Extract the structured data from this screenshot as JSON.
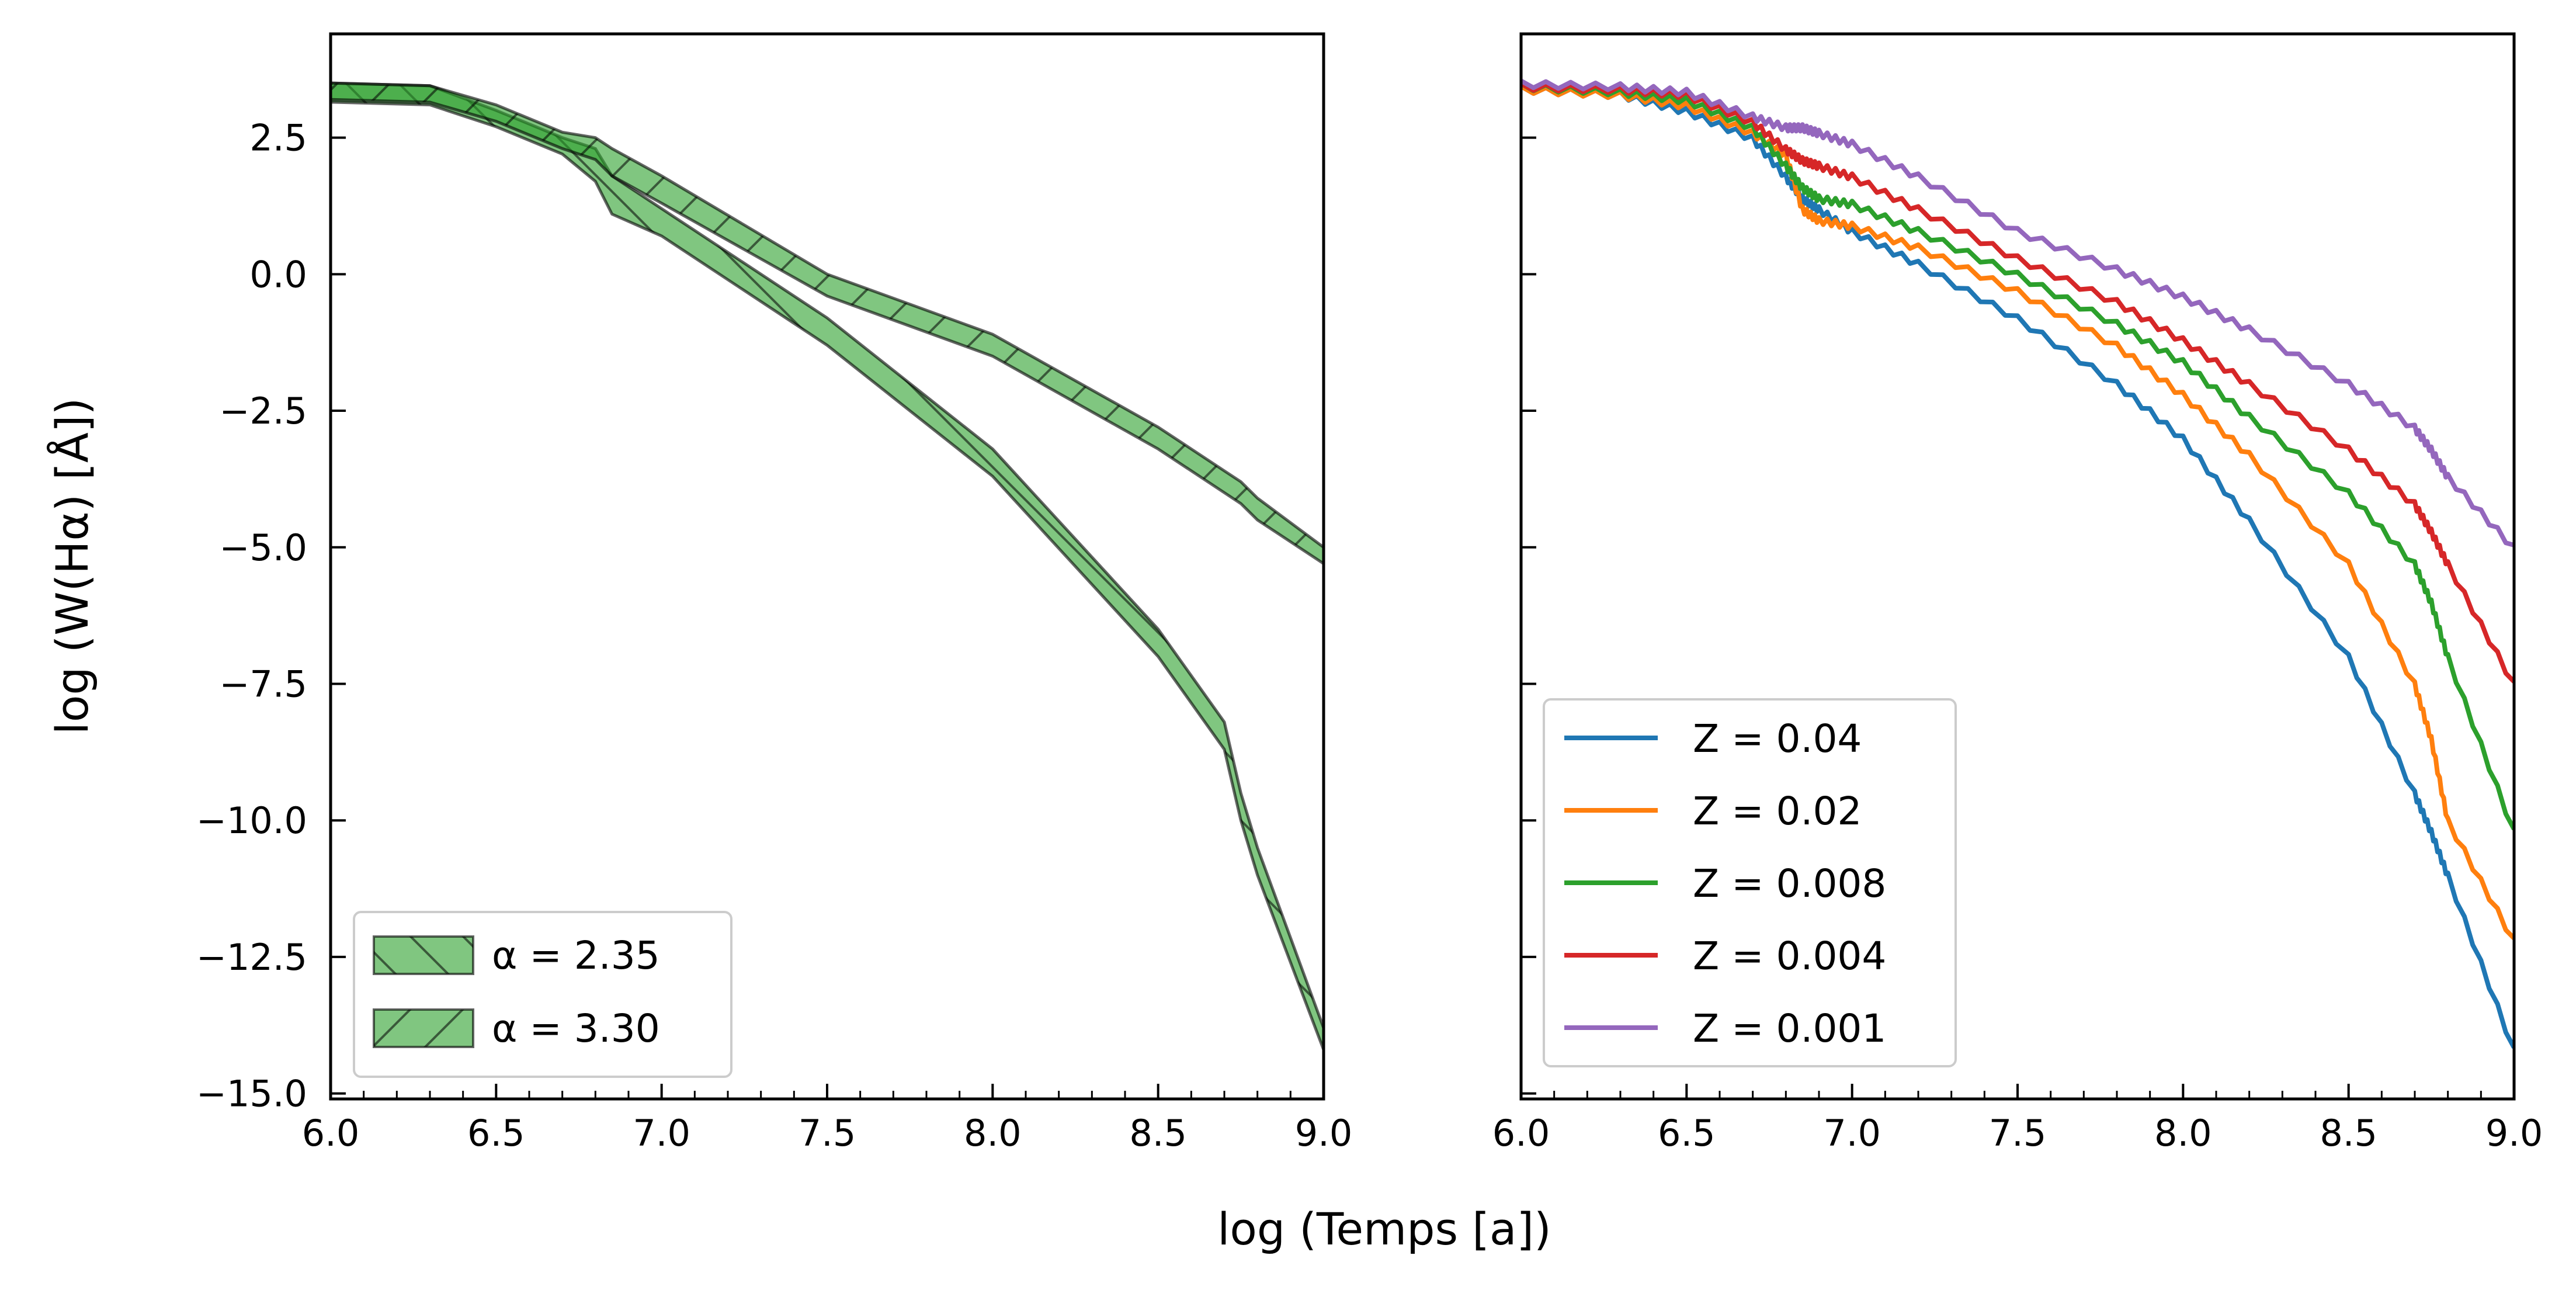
{
  "figure": {
    "xlabel": "log (Temps [a])",
    "ylabel": "log (W(Hα) [Å])"
  },
  "chart_data": [
    {
      "type": "area",
      "panel": "left",
      "xlim": [
        6.0,
        9.0
      ],
      "ylim": [
        -15.1,
        4.4
      ],
      "xticks": [
        "6.0",
        "6.5",
        "7.0",
        "7.5",
        "8.0",
        "8.5",
        "9.0"
      ],
      "yticks": [
        "2.5",
        "0.0",
        "−2.5",
        "−5.0",
        "−7.5",
        "−10.0",
        "−12.5",
        "−15.0"
      ],
      "legend_position": "lower left",
      "fill_color": "#2ca02c",
      "series": [
        {
          "name": "α = 2.35",
          "hatch": "\\",
          "x": [
            6.0,
            6.3,
            6.5,
            6.7,
            6.8,
            6.85,
            7.0,
            7.5,
            8.0,
            8.5,
            8.7,
            8.75,
            8.8,
            9.0
          ],
          "upper": [
            3.5,
            3.45,
            3.0,
            2.5,
            2.3,
            1.8,
            1.2,
            -0.8,
            -3.2,
            -6.5,
            -8.2,
            -9.5,
            -10.5,
            -13.8
          ],
          "lower": [
            3.15,
            3.1,
            2.7,
            2.2,
            1.7,
            1.1,
            0.7,
            -1.3,
            -3.7,
            -7.0,
            -8.7,
            -10.0,
            -11.0,
            -14.2
          ]
        },
        {
          "name": "α = 3.30",
          "hatch": "/",
          "x": [
            6.0,
            6.3,
            6.5,
            6.7,
            6.8,
            6.85,
            7.0,
            7.5,
            8.0,
            8.5,
            8.7,
            8.75,
            8.8,
            9.0
          ],
          "upper": [
            3.5,
            3.45,
            3.1,
            2.6,
            2.5,
            2.3,
            1.8,
            0.0,
            -1.1,
            -2.8,
            -3.6,
            -3.8,
            -4.1,
            -5.0
          ],
          "lower": [
            3.2,
            3.15,
            2.8,
            2.3,
            2.1,
            1.8,
            1.3,
            -0.4,
            -1.5,
            -3.2,
            -4.0,
            -4.2,
            -4.5,
            -5.3
          ]
        }
      ]
    },
    {
      "type": "line",
      "panel": "right",
      "xlim": [
        6.0,
        9.0
      ],
      "ylim": [
        -15.1,
        4.4
      ],
      "xticks": [
        "6.0",
        "6.5",
        "7.0",
        "7.5",
        "8.0",
        "8.5",
        "9.0"
      ],
      "legend_position": "lower left",
      "x": [
        6.0,
        6.3,
        6.5,
        6.7,
        6.8,
        6.85,
        6.9,
        7.0,
        7.2,
        7.5,
        7.8,
        8.0,
        8.2,
        8.5,
        8.7,
        8.75,
        8.8,
        9.0
      ],
      "series": [
        {
          "name": "Z = 0.04",
          "color": "#1f77b4",
          "values": [
            3.4,
            3.3,
            3.0,
            2.5,
            1.8,
            1.4,
            1.2,
            0.8,
            0.2,
            -0.8,
            -2.0,
            -3.0,
            -4.5,
            -7.0,
            -9.5,
            -10.2,
            -11.0,
            -14.2
          ]
        },
        {
          "name": "Z = 0.02",
          "color": "#ff7f0e",
          "values": [
            3.4,
            3.3,
            3.1,
            2.6,
            2.2,
            1.2,
            1.0,
            0.9,
            0.5,
            -0.3,
            -1.3,
            -2.2,
            -3.3,
            -5.3,
            -7.5,
            -8.5,
            -10.0,
            -12.2
          ]
        },
        {
          "name": "Z = 0.008",
          "color": "#2ca02c",
          "values": [
            3.45,
            3.35,
            3.2,
            2.7,
            2.0,
            1.6,
            1.4,
            1.3,
            0.8,
            0.0,
            -0.9,
            -1.6,
            -2.6,
            -4.0,
            -5.3,
            -6.0,
            -7.0,
            -10.2
          ]
        },
        {
          "name": "Z = 0.004",
          "color": "#d62728",
          "values": [
            3.45,
            3.4,
            3.3,
            2.8,
            2.3,
            2.1,
            2.0,
            1.8,
            1.2,
            0.3,
            -0.5,
            -1.2,
            -2.0,
            -3.2,
            -4.2,
            -4.7,
            -5.3,
            -7.5
          ]
        },
        {
          "name": "Z = 0.001",
          "color": "#9467bd",
          "values": [
            3.5,
            3.45,
            3.35,
            2.9,
            2.7,
            2.7,
            2.6,
            2.4,
            1.8,
            0.8,
            0.1,
            -0.4,
            -1.0,
            -2.0,
            -2.8,
            -3.2,
            -3.7,
            -5.0
          ]
        }
      ]
    }
  ]
}
